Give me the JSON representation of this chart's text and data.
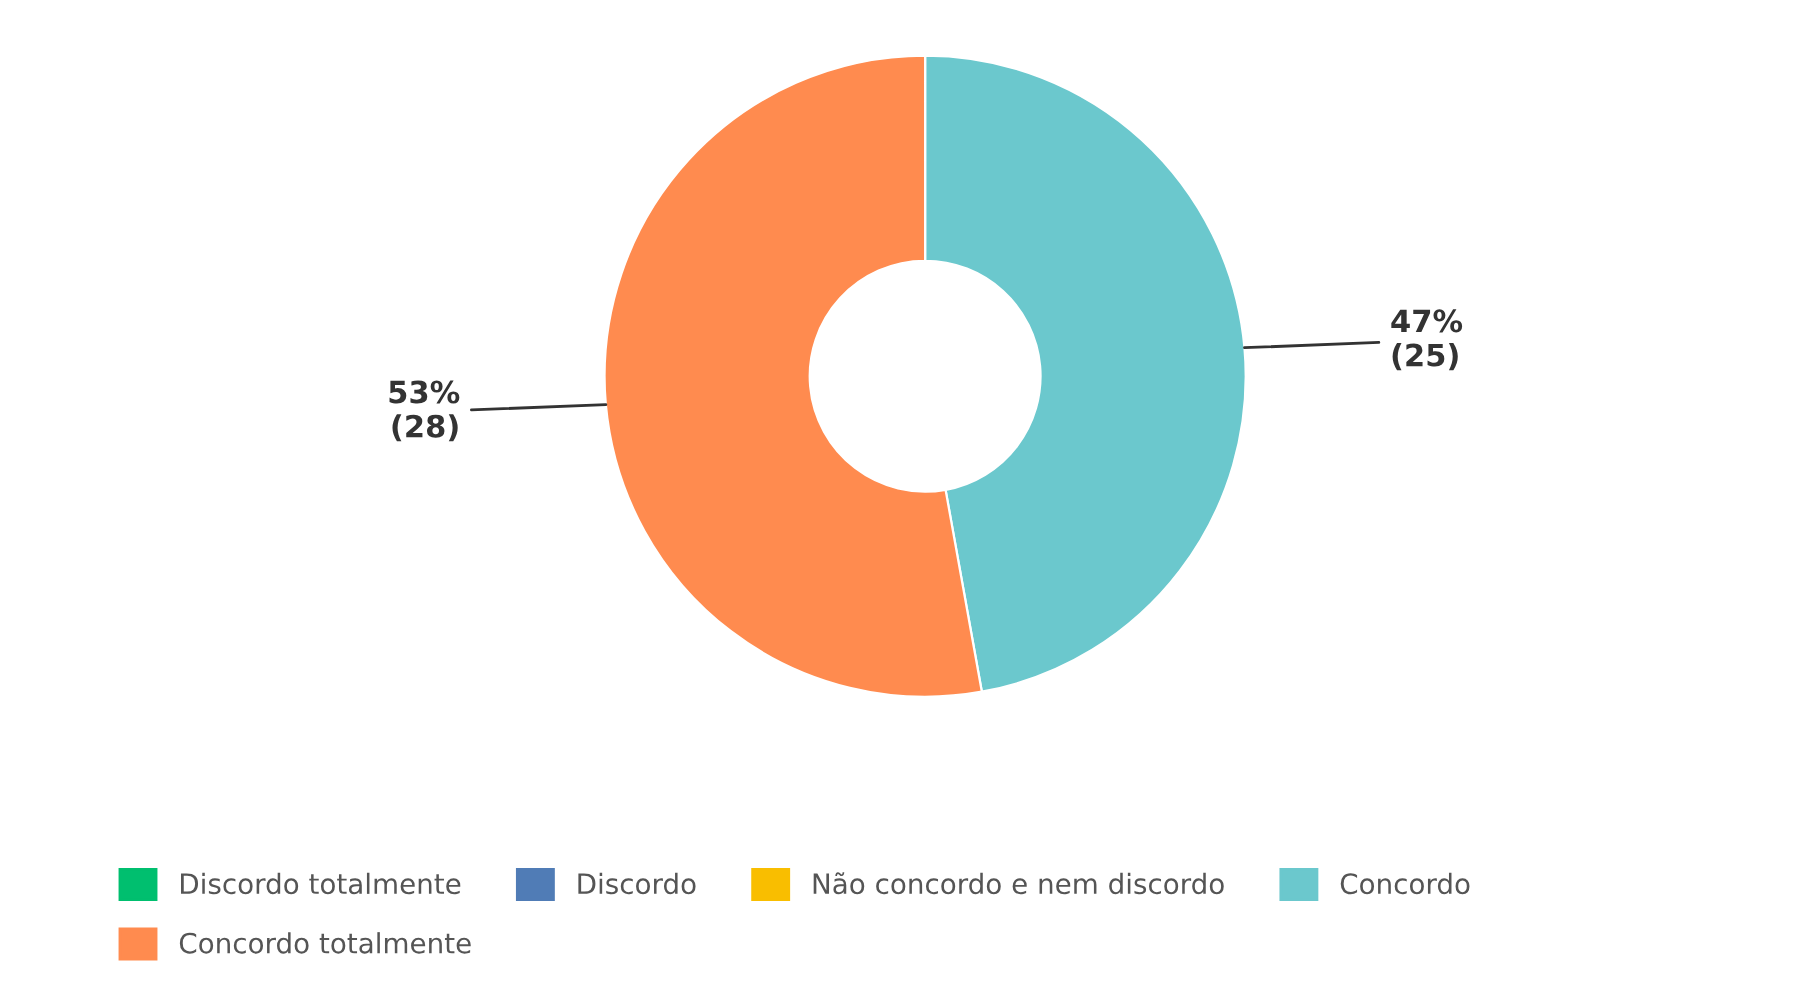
{
  "chart_data": {
    "type": "donut",
    "categories": [
      "Discordo totalmente",
      "Discordo",
      "Não concordo e nem discordo",
      "Concordo",
      "Concordo totalmente"
    ],
    "values": [
      0,
      0,
      0,
      25,
      28
    ],
    "colors": [
      "#00bf6f",
      "#507cb6",
      "#f9be00",
      "#6bc8cd",
      "#ff8b4f"
    ],
    "value_labels": [
      null,
      null,
      null,
      "47%\n(25)",
      "53%\n(28)"
    ],
    "legend": "bottom"
  }
}
